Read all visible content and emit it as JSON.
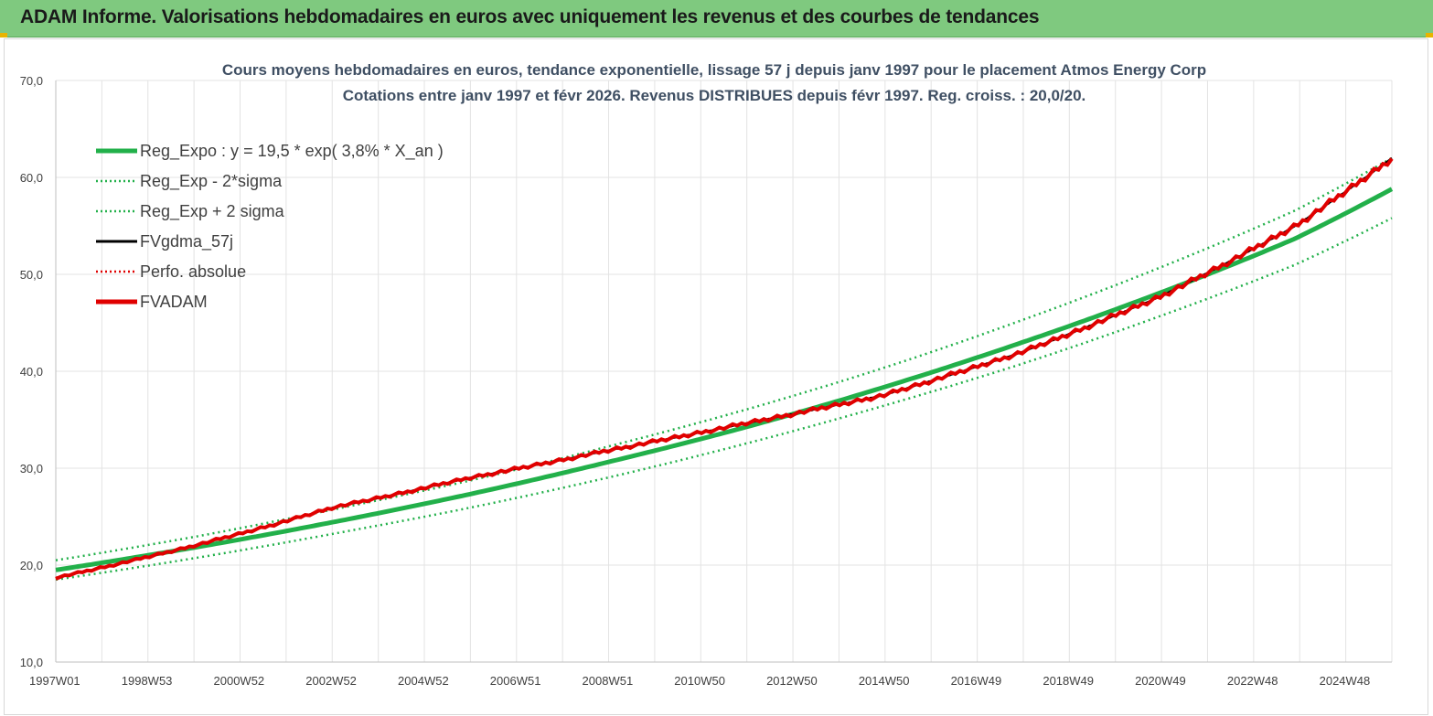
{
  "header": {
    "title": "ADAM Informe. Valorisations hebdomadaires en euros avec uniquement les revenus et des courbes de tendances",
    "background": "#7fc97f"
  },
  "chart_data": {
    "type": "line",
    "title_line1": "Cours moyens hebdomadaires en euros, tendance exponentielle, lissage 57 j depuis janv 1997 pour le placement Atmos Energy Corp",
    "title_line2": "Cotations entre janv 1997 et févr 2026. Revenus DISTRIBUES depuis févr 1997. Reg. croiss. : 20,0/20.",
    "x_ticks": [
      "1997W01",
      "1998W53",
      "2000W52",
      "2002W52",
      "2004W52",
      "2006W51",
      "2008W51",
      "2010W50",
      "2012W50",
      "2014W50",
      "2016W49",
      "2018W49",
      "2020W49",
      "2022W48",
      "2024W48"
    ],
    "x_years": [
      1997.0,
      2026.1
    ],
    "y_ticks": [
      "10,0",
      "20,0",
      "30,0",
      "40,0",
      "50,0",
      "60,0",
      "70,0"
    ],
    "ylim": [
      10,
      70
    ],
    "grid": true,
    "legend_position": "top-left",
    "series": [
      {
        "name": "Reg_Expo : y = 19,5 * exp( 3,8% *  X_an )",
        "color": "#22b04a",
        "style": "solid-thick",
        "x": [
          1997,
          2000,
          2003,
          2006,
          2009,
          2012,
          2015,
          2018,
          2021,
          2024,
          2026.1
        ],
        "values": [
          19.5,
          21.8,
          24.4,
          27.3,
          30.6,
          34.2,
          38.3,
          42.9,
          48.0,
          53.7,
          58.8
        ]
      },
      {
        "name": "Reg_Exp - 2*sigma",
        "color": "#22b04a",
        "style": "dotted",
        "x": [
          1997,
          2000,
          2003,
          2006,
          2009,
          2012,
          2015,
          2018,
          2021,
          2024,
          2026.1
        ],
        "values": [
          18.5,
          20.7,
          23.2,
          25.9,
          29.0,
          32.5,
          36.4,
          40.7,
          45.6,
          51.0,
          55.8
        ]
      },
      {
        "name": "Reg_Exp + 2 sigma",
        "color": "#22b04a",
        "style": "dotted",
        "x": [
          1997,
          2000,
          2003,
          2006,
          2009,
          2012,
          2015,
          2018,
          2021,
          2024,
          2026.1
        ],
        "values": [
          20.5,
          22.9,
          25.7,
          28.7,
          32.2,
          36.0,
          40.3,
          45.2,
          50.6,
          56.6,
          62.0
        ]
      },
      {
        "name": "FVgdma_57j",
        "color": "#000000",
        "style": "solid",
        "x": [
          1997,
          2000,
          2003,
          2006,
          2009,
          2012,
          2015,
          2018,
          2021,
          2024,
          2026.1
        ],
        "values": [
          18.7,
          22.0,
          25.9,
          29.0,
          31.8,
          34.6,
          37.5,
          41.9,
          47.6,
          55.0,
          62.0
        ]
      },
      {
        "name": "Perfo. absolue",
        "color": "#e00000",
        "style": "dotted",
        "x": [
          1997,
          2000,
          2003,
          2006,
          2009,
          2012,
          2015,
          2018,
          2021,
          2024,
          2026.1
        ],
        "values": [
          18.7,
          22.0,
          25.9,
          29.0,
          31.8,
          34.6,
          37.5,
          41.9,
          47.6,
          55.0,
          62.0
        ]
      },
      {
        "name": "FVADAM",
        "color": "#e00000",
        "style": "solid-thick",
        "x": [
          1997,
          2000,
          2003,
          2006,
          2009,
          2012,
          2015,
          2018,
          2021,
          2024,
          2026.1
        ],
        "values": [
          18.7,
          22.0,
          25.9,
          29.0,
          31.8,
          34.6,
          37.5,
          41.9,
          47.6,
          55.0,
          62.0
        ]
      }
    ]
  }
}
